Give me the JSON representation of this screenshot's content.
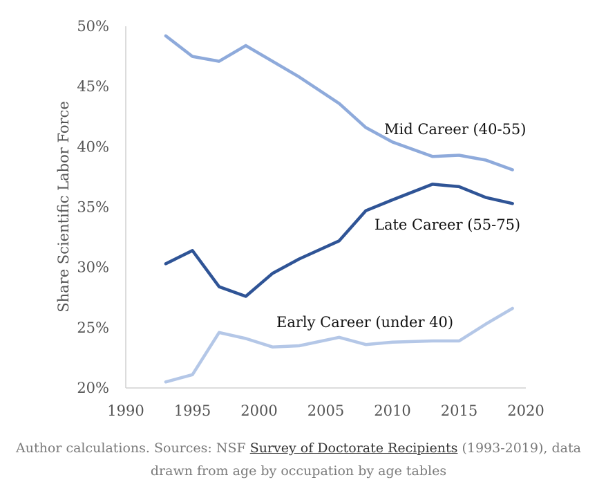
{
  "chart_data": {
    "type": "line",
    "ylabel": "Share Scientific Labor Force",
    "xlabel": "",
    "xlim": [
      1990,
      2020
    ],
    "ylim": [
      20,
      50
    ],
    "x_ticks": [
      "1990",
      "1995",
      "2000",
      "2005",
      "2010",
      "2015",
      "2020"
    ],
    "y_ticks": [
      "20%",
      "25%",
      "30%",
      "35%",
      "40%",
      "45%",
      "50%"
    ],
    "grid": false,
    "legend": "inline labels",
    "series": [
      {
        "name": "Mid Career (40-55)",
        "color": "#8eaadb",
        "x": [
          1993,
          1995,
          1997,
          1999,
          2001,
          2003,
          2006,
          2008,
          2010,
          2013,
          2015,
          2017,
          2019
        ],
        "y": [
          49.2,
          47.5,
          47.1,
          48.4,
          47.1,
          45.8,
          43.6,
          41.6,
          40.4,
          39.2,
          39.3,
          38.9,
          38.1
        ]
      },
      {
        "name": "Late Career (55-75)",
        "color": "#2f5496",
        "x": [
          1993,
          1995,
          1997,
          1999,
          2001,
          2003,
          2006,
          2008,
          2010,
          2013,
          2015,
          2017,
          2019
        ],
        "y": [
          30.3,
          31.4,
          28.4,
          27.6,
          29.5,
          30.7,
          32.2,
          34.7,
          35.6,
          36.9,
          36.7,
          35.8,
          35.3
        ]
      },
      {
        "name": "Early Career (under 40)",
        "color": "#b4c7e7",
        "x": [
          1993,
          1995,
          1997,
          1999,
          2001,
          2003,
          2006,
          2008,
          2010,
          2013,
          2015,
          2017,
          2019
        ],
        "y": [
          20.5,
          21.1,
          24.6,
          24.1,
          23.4,
          23.5,
          24.2,
          23.6,
          23.8,
          23.9,
          23.9,
          25.3,
          26.6
        ]
      }
    ]
  },
  "caption": {
    "prefix": "Author calculations. Sources: NSF ",
    "link_text": "Survey of Doctorate Recipients",
    "suffix": " (1993-2019), data",
    "line2": "drawn from age by occupation by age tables"
  }
}
